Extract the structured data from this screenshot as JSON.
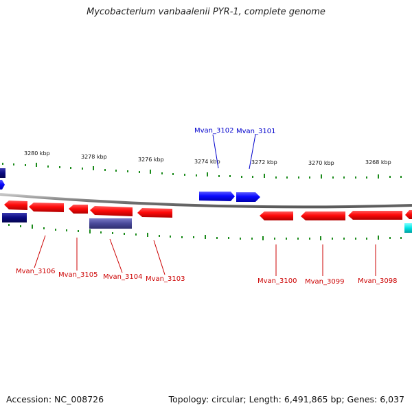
{
  "title": "Mycobacterium vanbaalenii PYR-1, complete genome",
  "footer": {
    "accession": "Accession: NC_008726",
    "info": "Topology: circular; Length: 6,491,865 bp; Genes: 6,037"
  },
  "colors": {
    "forward_gene": "#0a0aff",
    "reverse_gene": "#ff0a0a",
    "dark_gene": "#0a0a80",
    "purple_gene": "#4a4a9a",
    "cyan_gene": "#00e5e5",
    "tick": "#1a8a1a",
    "backbone": "#8a8a8a"
  },
  "scale_labels": [
    "3280 kbp",
    "3278 kbp",
    "3276 kbp",
    "3274 kbp",
    "3272 kbp",
    "3270 kbp",
    "3268 kbp"
  ],
  "genes": [
    {
      "label": "Mvan_3102",
      "strand": "forward"
    },
    {
      "label": "Mvan_3101",
      "strand": "forward"
    },
    {
      "label": "Mvan_3106",
      "strand": "reverse"
    },
    {
      "label": "Mvan_3105",
      "strand": "reverse"
    },
    {
      "label": "Mvan_3104",
      "strand": "reverse"
    },
    {
      "label": "Mvan_3103",
      "strand": "reverse"
    },
    {
      "label": "Mvan_3100",
      "strand": "reverse"
    },
    {
      "label": "Mvan_3099",
      "strand": "reverse"
    },
    {
      "label": "Mvan_3098",
      "strand": "reverse"
    }
  ]
}
